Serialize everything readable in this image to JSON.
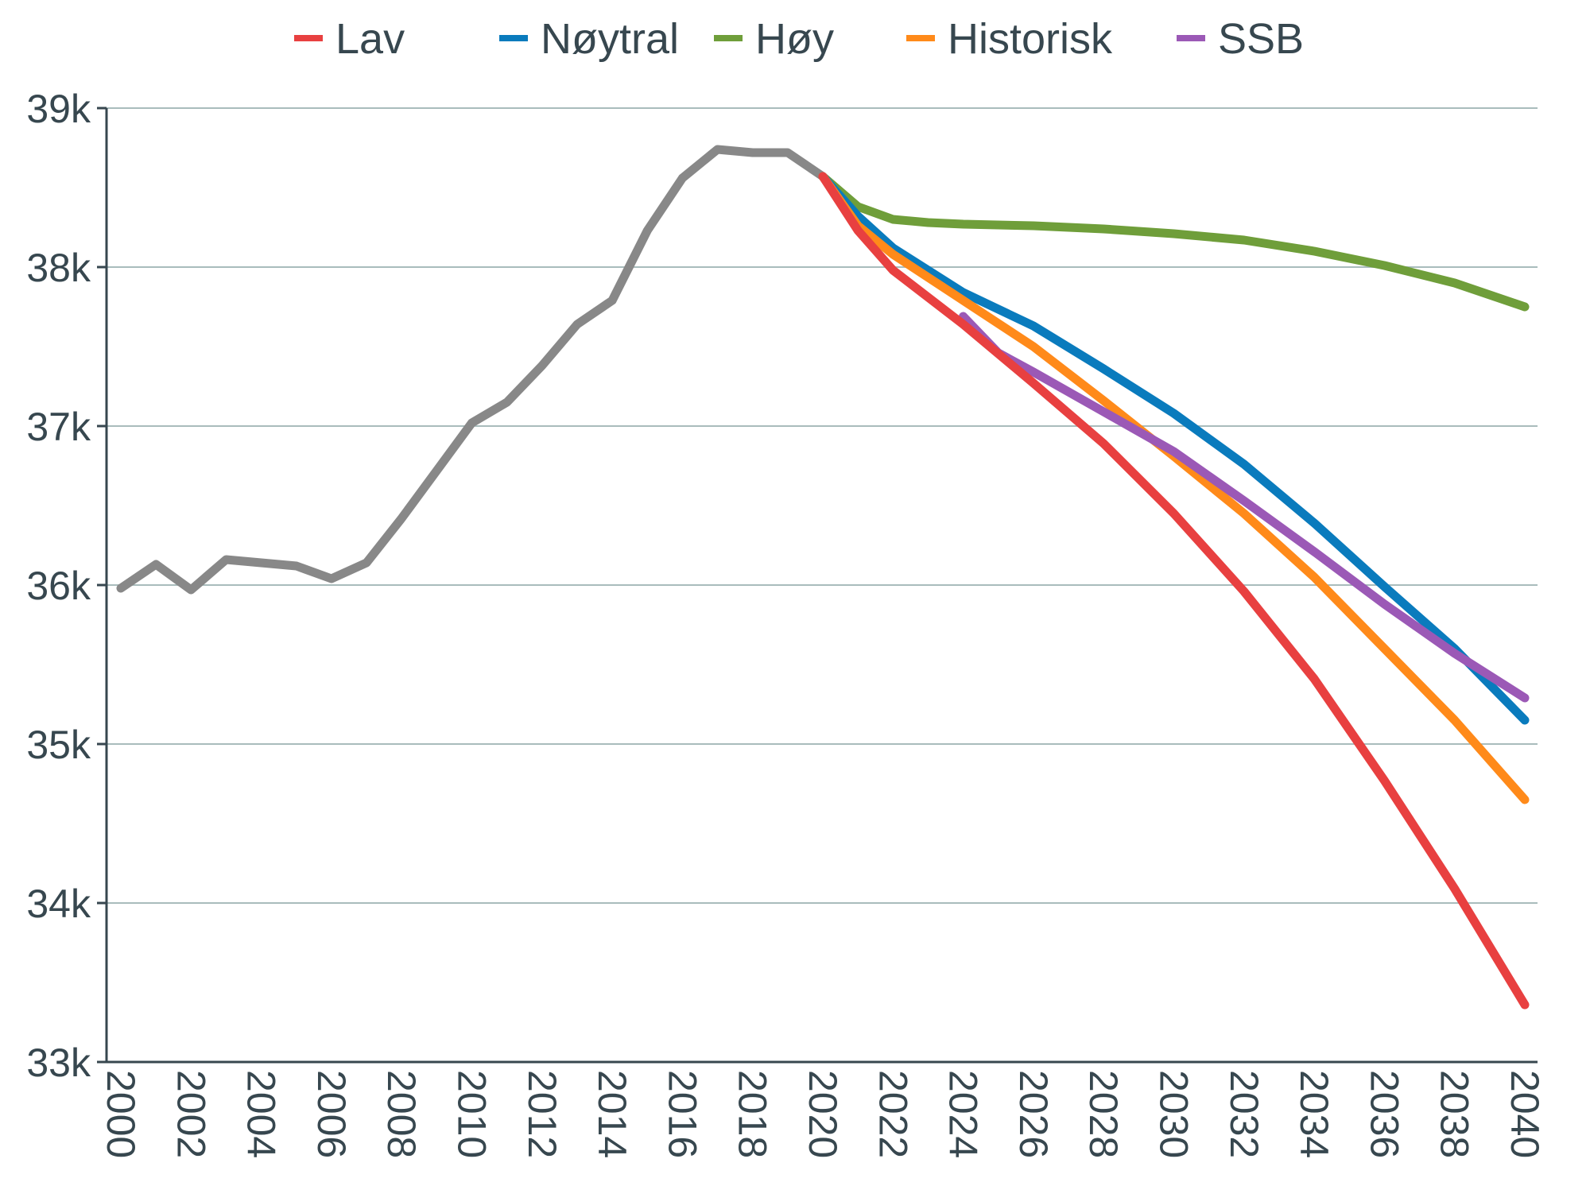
{
  "chart_data": {
    "type": "line",
    "title": "",
    "xlabel": "",
    "ylabel": "",
    "xlim": [
      2000,
      2040
    ],
    "ylim": [
      33000,
      39000
    ],
    "y_ticks": [
      33000,
      34000,
      35000,
      36000,
      37000,
      38000,
      39000
    ],
    "y_tick_labels": [
      "33k",
      "34k",
      "35k",
      "36k",
      "37k",
      "38k",
      "39k"
    ],
    "x_ticks": [
      2000,
      2002,
      2004,
      2006,
      2008,
      2010,
      2012,
      2014,
      2016,
      2018,
      2020,
      2022,
      2024,
      2026,
      2028,
      2030,
      2032,
      2034,
      2036,
      2038,
      2040
    ],
    "x_tick_labels": [
      "2000",
      "2002",
      "2004",
      "2006",
      "2008",
      "2010",
      "2012",
      "2014",
      "2016",
      "2018",
      "2020",
      "2022",
      "2024",
      "2026",
      "2028",
      "2030",
      "2032",
      "2034",
      "2036",
      "2038",
      "2040"
    ],
    "grid": "horizontal",
    "legend_position": "top-center",
    "history": {
      "name": "",
      "color": "#888888",
      "x": [
        2000,
        2001,
        2002,
        2003,
        2004,
        2005,
        2006,
        2007,
        2008,
        2009,
        2010,
        2011,
        2012,
        2013,
        2014,
        2015,
        2016,
        2017,
        2018,
        2019,
        2020
      ],
      "y": [
        35980,
        36130,
        35970,
        36160,
        36140,
        36120,
        36040,
        36140,
        36420,
        36720,
        37020,
        37150,
        37380,
        37640,
        37790,
        38230,
        38560,
        38740,
        38720,
        38720,
        38570
      ]
    },
    "series": [
      {
        "name": "Lav",
        "color": "#e84040",
        "x": [
          2020,
          2021,
          2022,
          2024,
          2026,
          2028,
          2030,
          2032,
          2034,
          2036,
          2038,
          2040
        ],
        "y": [
          38570,
          38230,
          37980,
          37640,
          37270,
          36890,
          36450,
          35960,
          35410,
          34770,
          34090,
          33360
        ]
      },
      {
        "name": "Nøytral",
        "color": "#0a7bbd",
        "x": [
          2020,
          2021,
          2022,
          2024,
          2026,
          2028,
          2030,
          2032,
          2034,
          2036,
          2038,
          2040
        ],
        "y": [
          38570,
          38320,
          38120,
          37840,
          37630,
          37360,
          37080,
          36760,
          36390,
          35990,
          35600,
          35150
        ]
      },
      {
        "name": "Høy",
        "color": "#6f9e3a",
        "x": [
          2020,
          2021,
          2022,
          2023,
          2024,
          2026,
          2028,
          2030,
          2032,
          2034,
          2036,
          2038,
          2040
        ],
        "y": [
          38570,
          38380,
          38300,
          38280,
          38270,
          38260,
          38240,
          38210,
          38170,
          38100,
          38010,
          37900,
          37750
        ]
      },
      {
        "name": "Historisk",
        "color": "#ff8a1a",
        "x": [
          2020,
          2021,
          2022,
          2024,
          2026,
          2028,
          2030,
          2032,
          2034,
          2036,
          2038,
          2040
        ],
        "y": [
          38570,
          38260,
          38080,
          37790,
          37500,
          37160,
          36810,
          36450,
          36050,
          35600,
          35150,
          34650
        ]
      },
      {
        "name": "SSB",
        "color": "#9b59b6",
        "x": [
          2024,
          2025,
          2026,
          2028,
          2030,
          2032,
          2034,
          2036,
          2038,
          2040
        ],
        "y": [
          37690,
          37460,
          37340,
          37090,
          36840,
          36530,
          36210,
          35880,
          35570,
          35290
        ]
      }
    ]
  }
}
